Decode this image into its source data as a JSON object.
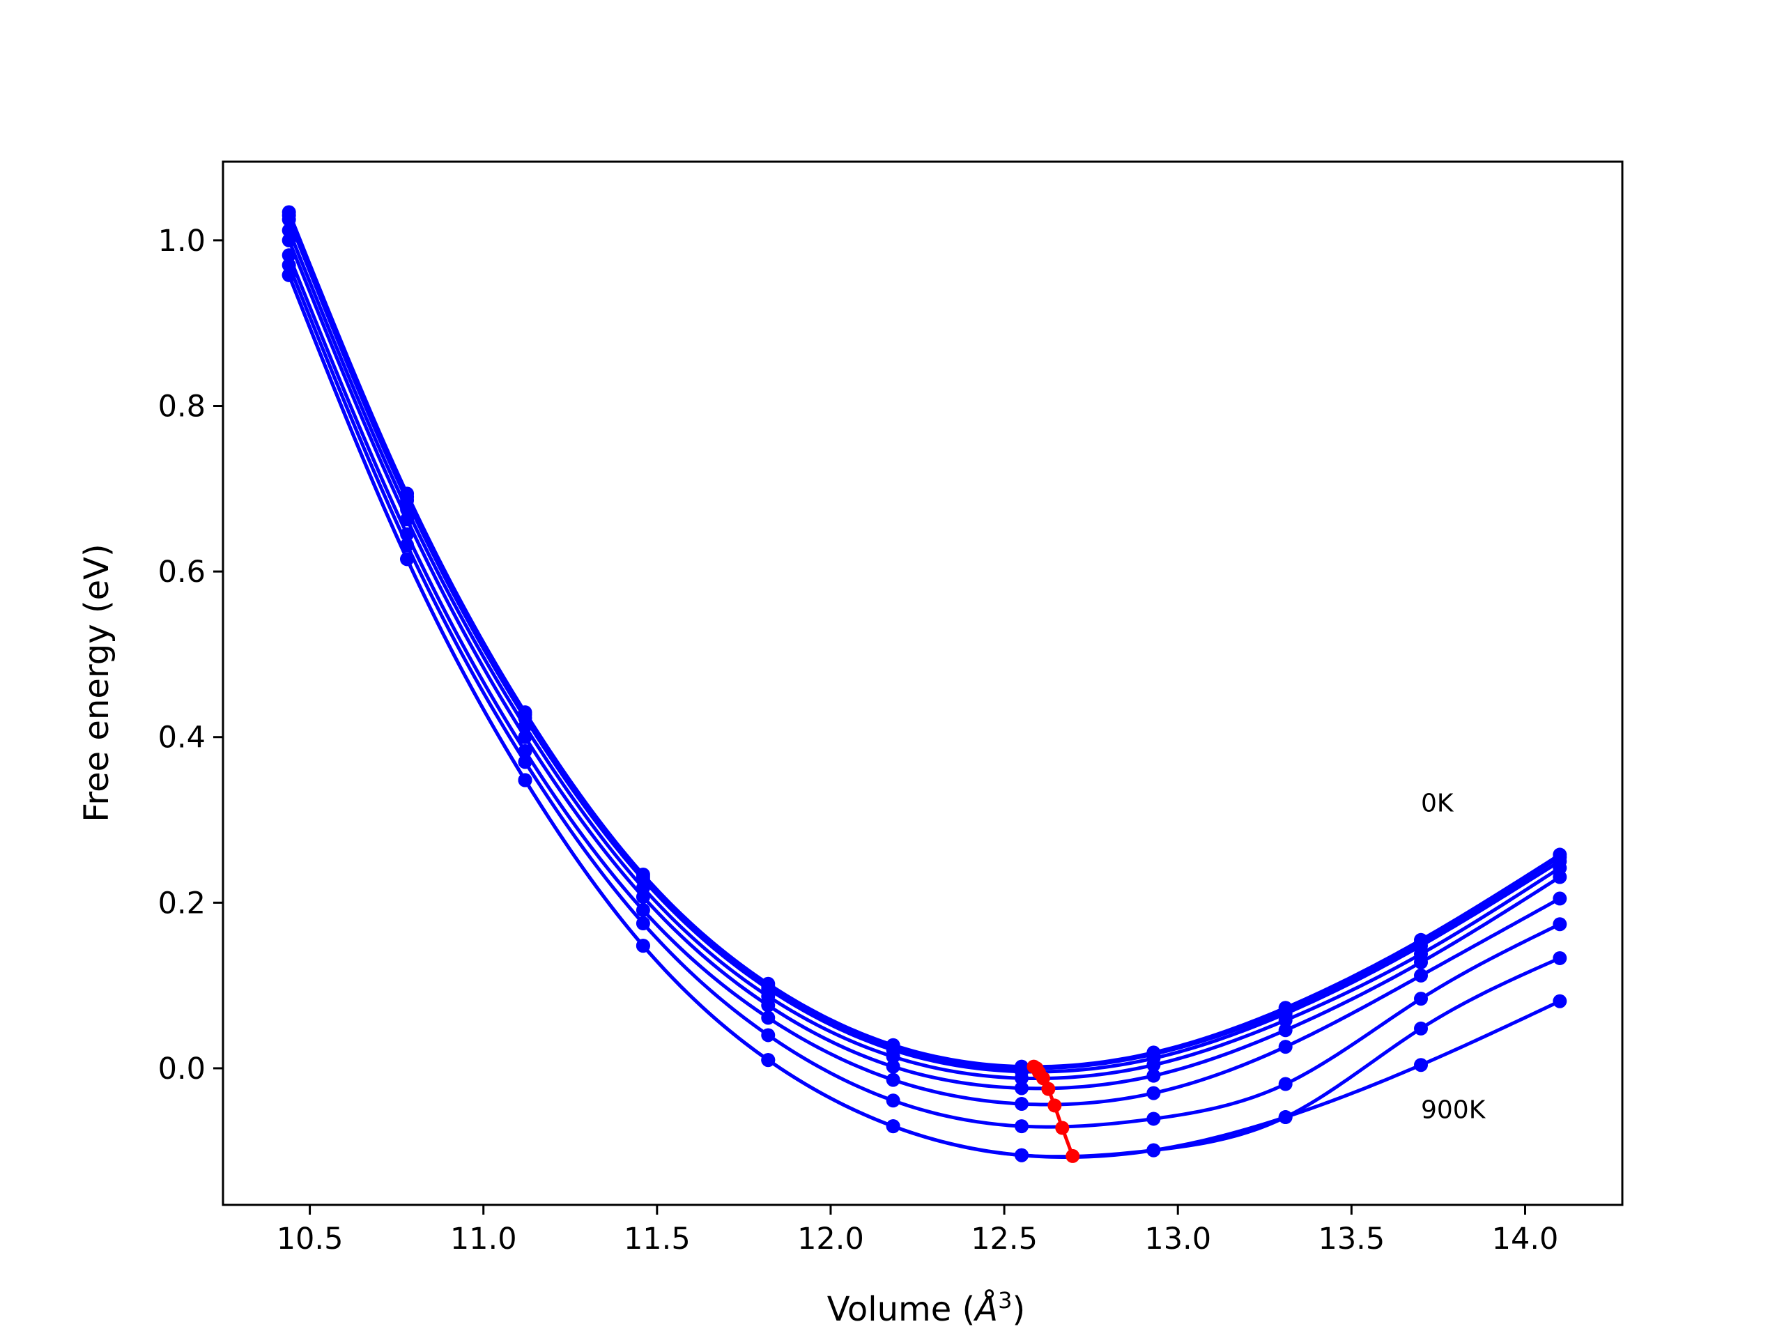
{
  "chart_data": {
    "type": "line",
    "xlabel_prefix": "Volume (",
    "xlabel_unit": "Å",
    "xlabel_exp": "3",
    "xlabel_suffix": ")",
    "ylabel": "Free energy (eV)",
    "xlim": [
      10.25,
      14.28
    ],
    "ylim": [
      -0.165,
      1.095
    ],
    "xticks": [
      10.5,
      11.0,
      11.5,
      12.0,
      12.5,
      13.0,
      13.5,
      14.0
    ],
    "xtick_labels": [
      "10.5",
      "11.0",
      "11.5",
      "12.0",
      "12.5",
      "13.0",
      "13.5",
      "14.0"
    ],
    "yticks": [
      0.0,
      0.2,
      0.4,
      0.6,
      0.8,
      1.0
    ],
    "ytick_labels": [
      "0.0",
      "0.2",
      "0.4",
      "0.6",
      "0.8",
      "1.0"
    ],
    "grid": false,
    "legend": "none",
    "colors": {
      "curves": "#0000ff",
      "minima": "#ff0000"
    },
    "x": [
      10.44,
      10.78,
      11.12,
      11.46,
      11.82,
      12.18,
      12.55,
      12.93,
      13.31,
      13.7,
      14.1
    ],
    "series": [
      {
        "values": [
          1.034,
          0.694,
          0.43,
          0.234,
          0.102,
          0.028,
          0.002,
          0.019,
          0.073,
          0.155,
          0.258
        ]
      },
      {
        "values": [
          1.03,
          0.69,
          0.427,
          0.231,
          0.099,
          0.025,
          0.0,
          0.017,
          0.07,
          0.152,
          0.255
        ]
      },
      {
        "values": [
          1.025,
          0.686,
          0.423,
          0.228,
          0.096,
          0.022,
          -0.004,
          0.012,
          0.066,
          0.148,
          0.25
        ]
      },
      {
        "values": [
          1.012,
          0.675,
          0.413,
          0.218,
          0.087,
          0.014,
          -0.012,
          0.004,
          0.058,
          0.138,
          0.242
        ]
      },
      {
        "values": [
          1.0,
          0.663,
          0.4,
          0.207,
          0.076,
          0.002,
          -0.024,
          -0.009,
          0.046,
          0.128,
          0.231
        ]
      },
      {
        "values": [
          0.982,
          0.645,
          0.383,
          0.191,
          0.061,
          -0.014,
          -0.043,
          -0.03,
          0.026,
          0.112,
          0.205
        ]
      },
      {
        "values": [
          0.97,
          0.632,
          0.37,
          0.175,
          0.04,
          -0.039,
          -0.07,
          -0.061,
          -0.019,
          0.084,
          0.174
        ]
      },
      {
        "values": [
          0.958,
          0.615,
          0.348,
          0.148,
          0.01,
          -0.07,
          -0.105,
          -0.099,
          -0.059,
          0.048,
          0.133
        ]
      },
      {
        "values": [
          0.958,
          0.615,
          0.348,
          0.148,
          0.01,
          -0.07,
          -0.105,
          -0.099,
          -0.059,
          0.004,
          0.081
        ]
      }
    ],
    "minima": {
      "x": [
        12.585,
        12.593,
        12.6,
        12.612,
        12.627,
        12.645,
        12.667,
        12.697
      ],
      "y": [
        0.002,
        0.0,
        -0.005,
        -0.012,
        -0.025,
        -0.045,
        -0.072,
        -0.106
      ]
    },
    "annotations": [
      {
        "text": "0K",
        "x": 13.7,
        "y": 0.31
      },
      {
        "text": "900K",
        "x": 13.7,
        "y": -0.06
      }
    ]
  }
}
